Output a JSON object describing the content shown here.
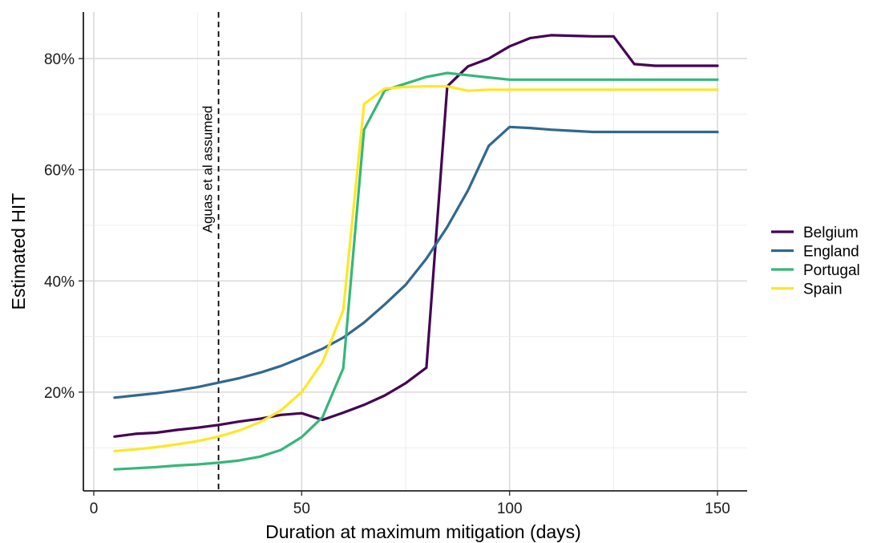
{
  "chart_data": {
    "type": "line",
    "xlabel": "Duration at maximum mitigation (days)",
    "ylabel": "Estimated HIT",
    "xlim": [
      0,
      150
    ],
    "ylim": [
      0,
      0.85
    ],
    "x_ticks": [
      0,
      50,
      100,
      150
    ],
    "x_tick_labels": [
      "0",
      "50",
      "100",
      "150"
    ],
    "y_ticks": [
      0.2,
      0.4,
      0.6,
      0.8
    ],
    "y_tick_labels": [
      "20%",
      "40%",
      "60%",
      "80%"
    ],
    "grid": true,
    "legend_position": "right",
    "annotation": {
      "x": 30,
      "label": "Aguas et al assumed",
      "line_style": "dashed"
    },
    "series": [
      {
        "name": "Belgium",
        "color": "#440154",
        "x": [
          5,
          10,
          15,
          20,
          25,
          30,
          35,
          40,
          45,
          50,
          55,
          60,
          65,
          70,
          75,
          80,
          85,
          90,
          95,
          100,
          105,
          110,
          115,
          120,
          125,
          130,
          135,
          140,
          145,
          150
        ],
        "y": [
          0.12,
          0.125,
          0.127,
          0.132,
          0.136,
          0.141,
          0.147,
          0.152,
          0.159,
          0.162,
          0.15,
          0.163,
          0.177,
          0.194,
          0.216,
          0.244,
          0.75,
          0.786,
          0.8,
          0.822,
          0.837,
          0.842,
          0.841,
          0.84,
          0.84,
          0.79,
          0.787,
          0.787,
          0.787,
          0.787
        ]
      },
      {
        "name": "England",
        "color": "#31688e",
        "x": [
          5,
          10,
          15,
          20,
          25,
          30,
          35,
          40,
          45,
          50,
          55,
          60,
          65,
          70,
          75,
          80,
          85,
          90,
          95,
          100,
          105,
          110,
          115,
          120,
          125,
          130,
          135,
          140,
          145,
          150
        ],
        "y": [
          0.19,
          0.194,
          0.198,
          0.203,
          0.209,
          0.217,
          0.225,
          0.235,
          0.247,
          0.262,
          0.278,
          0.298,
          0.325,
          0.358,
          0.393,
          0.44,
          0.497,
          0.563,
          0.643,
          0.677,
          0.675,
          0.672,
          0.67,
          0.668,
          0.668,
          0.668,
          0.668,
          0.668,
          0.668,
          0.668
        ]
      },
      {
        "name": "Portugal",
        "color": "#35b779",
        "x": [
          5,
          10,
          15,
          20,
          25,
          30,
          35,
          40,
          45,
          50,
          55,
          60,
          65,
          70,
          75,
          80,
          85,
          90,
          95,
          100,
          105,
          110,
          115,
          120,
          125,
          130,
          135,
          140,
          145,
          150
        ],
        "y": [
          0.061,
          0.063,
          0.065,
          0.068,
          0.07,
          0.073,
          0.077,
          0.084,
          0.096,
          0.119,
          0.155,
          0.243,
          0.672,
          0.743,
          0.755,
          0.767,
          0.774,
          0.77,
          0.766,
          0.762,
          0.762,
          0.762,
          0.762,
          0.762,
          0.762,
          0.762,
          0.762,
          0.762,
          0.762,
          0.762
        ]
      },
      {
        "name": "Spain",
        "color": "#fde725",
        "x": [
          5,
          10,
          15,
          20,
          25,
          30,
          35,
          40,
          45,
          50,
          55,
          60,
          65,
          70,
          75,
          80,
          85,
          90,
          95,
          100,
          105,
          110,
          115,
          120,
          125,
          130,
          135,
          140,
          145,
          150
        ],
        "y": [
          0.094,
          0.097,
          0.101,
          0.106,
          0.112,
          0.12,
          0.131,
          0.146,
          0.167,
          0.2,
          0.254,
          0.347,
          0.718,
          0.746,
          0.749,
          0.75,
          0.75,
          0.742,
          0.744,
          0.744,
          0.744,
          0.744,
          0.744,
          0.744,
          0.744,
          0.744,
          0.744,
          0.744,
          0.744,
          0.744
        ]
      }
    ]
  }
}
